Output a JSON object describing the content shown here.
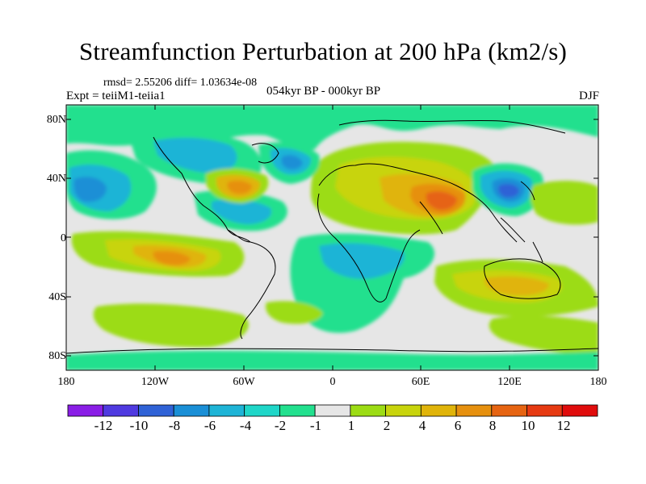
{
  "title": "Streamfunction Perturbation at 200 hPa (km2/s)",
  "stats": "rmsd= 2.55206 diff= 1.03634e-08",
  "experiment": "Expt = teiiM1-teiia1",
  "period": "054kyr BP - 000kyr BP",
  "season": "DJF",
  "lat_ticks": [
    "80N",
    "40N",
    "0",
    "40S",
    "80S"
  ],
  "lon_ticks": [
    "180",
    "120W",
    "60W",
    "0",
    "60E",
    "120E",
    "180"
  ],
  "colorbar": {
    "labels": [
      "-12",
      "-10",
      "-8",
      "-6",
      "-4",
      "-2",
      "-1",
      "1",
      "2",
      "4",
      "6",
      "8",
      "10",
      "12"
    ],
    "colors": [
      "#8a1ee6",
      "#4f3ae0",
      "#2f62d6",
      "#1a8fd6",
      "#1eb4d6",
      "#1fd6c8",
      "#22e08e",
      "#e6e6e6",
      "#9cdc14",
      "#c8d40c",
      "#e0b40a",
      "#e6900e",
      "#e66412",
      "#e63a12",
      "#e00c0c"
    ]
  }
}
